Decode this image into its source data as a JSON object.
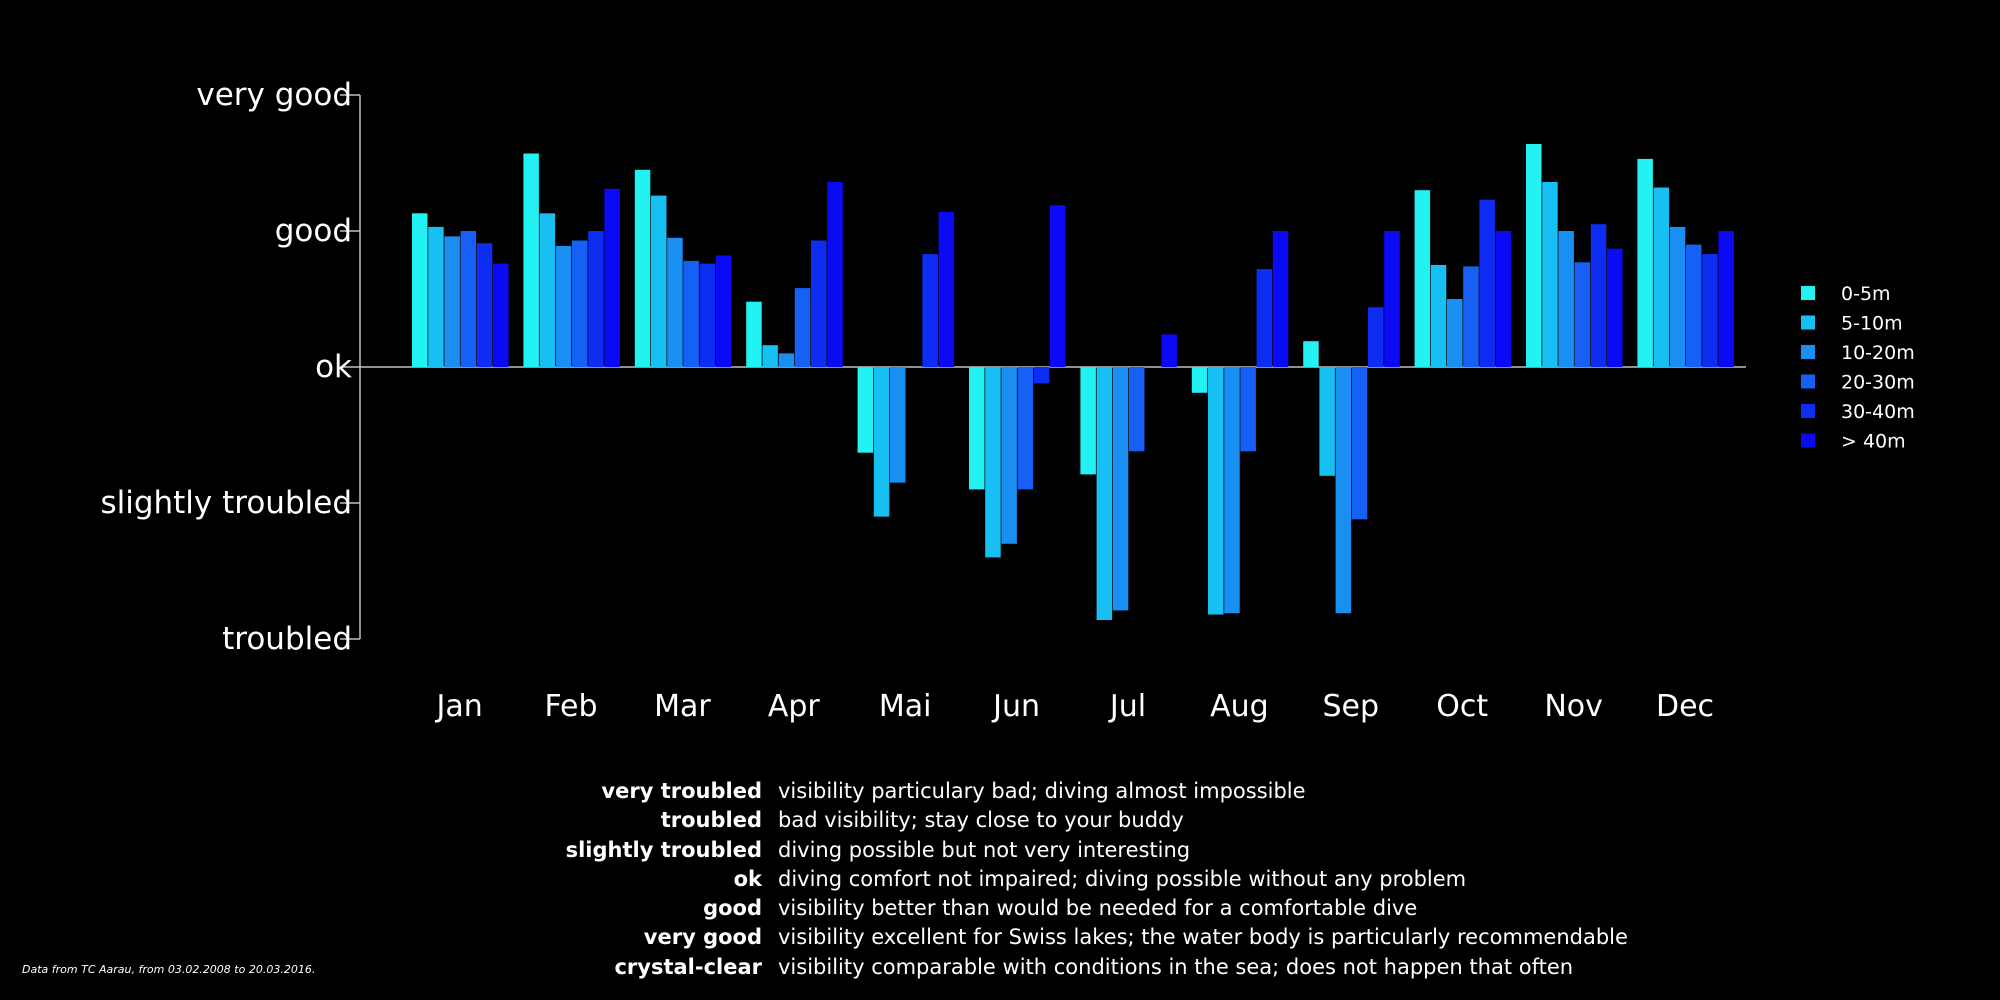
{
  "chart_data": {
    "type": "bar",
    "title": "",
    "xlabel": "",
    "ylabel": "",
    "ylim": [
      -2,
      2
    ],
    "y_ticks": [
      {
        "value": 2,
        "label": "very good"
      },
      {
        "value": 1,
        "label": "good"
      },
      {
        "value": 0,
        "label": "ok"
      },
      {
        "value": -1,
        "label": "slightly troubled"
      },
      {
        "value": -2,
        "label": "troubled"
      }
    ],
    "categories": [
      "Jan",
      "Feb",
      "Mar",
      "Apr",
      "Mai",
      "Jun",
      "Jul",
      "Aug",
      "Sep",
      "Oct",
      "Nov",
      "Dec"
    ],
    "legend_position": "right",
    "grid": false,
    "series": [
      {
        "name": "0-5m",
        "color": "#22f2f2",
        "values": [
          1.13,
          1.57,
          1.45,
          0.48,
          -0.63,
          -0.9,
          -0.79,
          -0.19,
          0.19,
          1.3,
          1.64,
          1.53
        ]
      },
      {
        "name": "5-10m",
        "color": "#18bff2",
        "values": [
          1.03,
          1.13,
          1.26,
          0.16,
          -1.1,
          -1.4,
          -1.86,
          -1.82,
          -0.8,
          0.75,
          1.36,
          1.32
        ]
      },
      {
        "name": "10-20m",
        "color": "#1a8ff2",
        "values": [
          0.96,
          0.89,
          0.95,
          0.1,
          -0.85,
          -1.3,
          -1.79,
          -1.81,
          -1.81,
          0.5,
          1.0,
          1.03
        ]
      },
      {
        "name": "20-30m",
        "color": "#1660f5",
        "values": [
          1.0,
          0.93,
          0.78,
          0.58,
          null,
          -0.9,
          -0.62,
          -0.62,
          -1.12,
          0.74,
          0.77,
          0.9
        ]
      },
      {
        "name": "30-40m",
        "color": "#0d2ef2",
        "values": [
          0.91,
          1.0,
          0.76,
          0.93,
          0.83,
          -0.12,
          0.0,
          0.72,
          0.44,
          1.23,
          1.05,
          0.83
        ]
      },
      {
        "name": "> 40m",
        "color": "#0a0af5",
        "values": [
          0.76,
          1.31,
          0.82,
          1.36,
          1.14,
          1.19,
          0.24,
          1.0,
          1.0,
          1.0,
          0.87,
          1.0
        ]
      }
    ]
  },
  "definitions": [
    {
      "term": "very troubled",
      "description": "visibility particulary bad; diving almost impossible"
    },
    {
      "term": "troubled",
      "description": "bad visibility; stay close to your buddy"
    },
    {
      "term": "slightly troubled",
      "description": "diving possible but not very interesting"
    },
    {
      "term": "ok",
      "description": "diving comfort not impaired; diving possible without any problem"
    },
    {
      "term": "good",
      "description": "visibility better than would be needed for a comfortable dive"
    },
    {
      "term": "very good",
      "description": "visibility excellent for Swiss lakes; the water body is particularly recommendable"
    },
    {
      "term": "crystal-clear",
      "description": "visibility comparable with conditions in the sea; does not happen that often"
    }
  ],
  "source_note": "Data from TC Aarau, from 03.02.2008 to 20.03.2016."
}
